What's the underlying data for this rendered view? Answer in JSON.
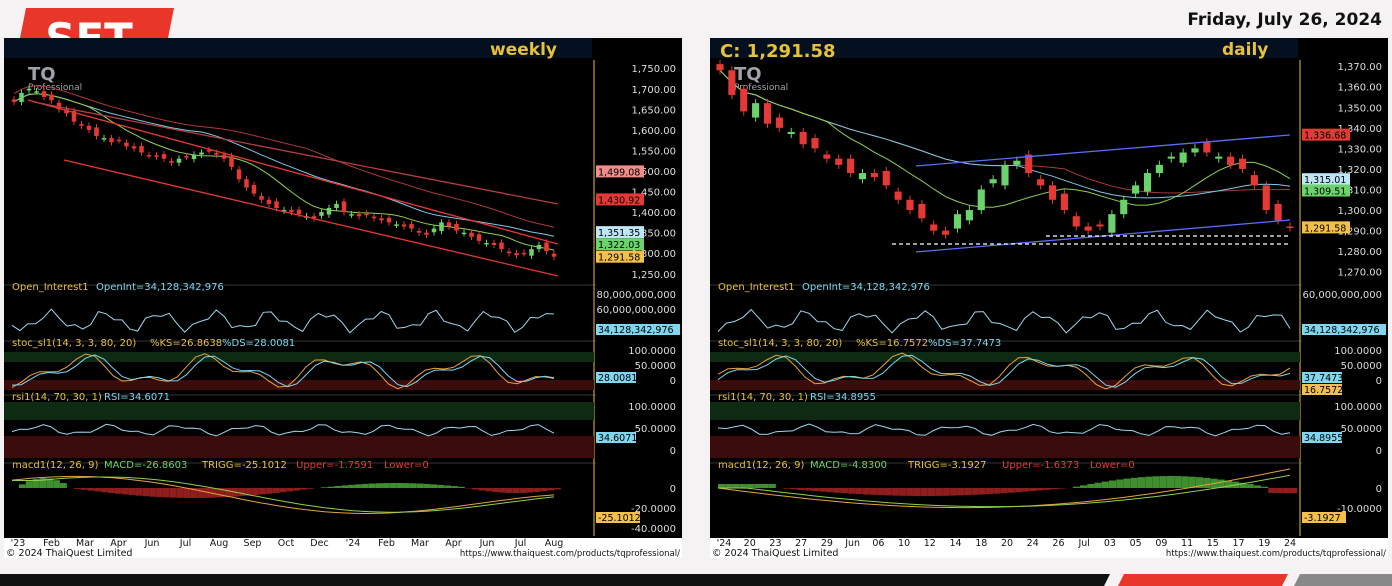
{
  "header": {
    "brand": "SET",
    "date": "Friday, July 26, 2024",
    "brand_color": "#e8372a"
  },
  "charts": [
    {
      "id": "weekly",
      "timeframe": "weekly",
      "logo": "TQ",
      "logo_sub": "Professional",
      "copyright": "© 2024  ThaiQuest Limited",
      "url": "https://www.thaiquest.com/products/tqprofessional/",
      "price_ticks": [
        "1,750.00",
        "1,700.00",
        "1,650.00",
        "1,600.00",
        "1,550.00",
        "1,500.00",
        "1,450.00",
        "1,400.00",
        "1,350.00",
        "1,300.00",
        "1,250.00"
      ],
      "price_range": [
        1230,
        1770
      ],
      "price_tags": [
        {
          "text": "1,499.08",
          "value": 1499.08,
          "color": "#f28b8b"
        },
        {
          "text": "1,430.92",
          "value": 1430.92,
          "color": "#e53935"
        },
        {
          "text": "1,351.35",
          "value": 1351.35,
          "color": "#bfe6f7"
        },
        {
          "text": "1,322.03",
          "value": 1322.03,
          "color": "#6bd36b"
        },
        {
          "text": "1,291.58",
          "value": 1291.58,
          "color": "#f5c04a"
        }
      ],
      "x_labels": [
        "'23",
        "Feb",
        "Mar",
        "Apr",
        "Jun",
        "Jul",
        "Aug",
        "Sep",
        "Oct",
        "Dec",
        "'24",
        "Feb",
        "Mar",
        "Apr",
        "Jun",
        "Jul",
        "Aug"
      ],
      "oi": {
        "label": "Open_Interest1",
        "value": "OpenInt=34,128,342,976",
        "ticks": [
          "80,000,000,000",
          "60,000,000,000"
        ],
        "tag": "34,128,342,976"
      },
      "stoch": {
        "label": "stoc_sl1(14, 3, 3, 80, 20)",
        "ks": "%KS=26.8638",
        "ds": "%DS=28.0081",
        "ticks": [
          "100.0000",
          "50.0000",
          "0"
        ],
        "tag": "28.0081"
      },
      "rsi": {
        "label": "rsi1(14, 70, 30, 1)",
        "value": "RSI=34.6071",
        "ticks": [
          "100.0000",
          "50.0000",
          "0"
        ],
        "tag": "34.6071"
      },
      "macd": {
        "label": "macd1(12, 26, 9)",
        "macd": "MACD=-26.8603",
        "trigg": "TRIGG=-25.1012",
        "upper": "Upper=-1.7591",
        "lower": "Lower=0",
        "ticks": [
          "0",
          "-20.0000",
          "-40.0000"
        ],
        "tag": "-25.1012"
      }
    },
    {
      "id": "daily",
      "timeframe": "daily",
      "close_label": "C: 1,291.58",
      "logo": "TQ",
      "logo_sub": "Professional",
      "copyright": "© 2024  ThaiQuest Limited",
      "url": "https://www.thaiquest.com/products/tqprofessional/",
      "price_ticks": [
        "1,370.00",
        "1,360.00",
        "1,350.00",
        "1,340.00",
        "1,330.00",
        "1,320.00",
        "1,310.00",
        "1,300.00",
        "1,290.00",
        "1,280.00",
        "1,270.00"
      ],
      "price_range": [
        1265,
        1373
      ],
      "price_tags": [
        {
          "text": "1,336.68",
          "value": 1336.68,
          "color": "#e53935"
        },
        {
          "text": "1,315.01",
          "value": 1315.01,
          "color": "#bfe6f7"
        },
        {
          "text": "1,309.51",
          "value": 1309.51,
          "color": "#6bd36b"
        },
        {
          "text": "1,291.58",
          "value": 1291.58,
          "color": "#f5c04a"
        }
      ],
      "x_labels": [
        "'24",
        "20",
        "23",
        "27",
        "29",
        "Jun",
        "06",
        "10",
        "12",
        "14",
        "18",
        "20",
        "24",
        "26",
        "Jul",
        "03",
        "05",
        "09",
        "11",
        "15",
        "17",
        "19",
        "24"
      ],
      "oi": {
        "label": "Open_Interest1",
        "value": "OpenInt=34,128,342,976",
        "ticks": [
          "60,000,000,000"
        ],
        "tag": "34,128,342,976"
      },
      "stoch": {
        "label": "stoc_sl1(14, 3, 3, 80, 20)",
        "ks": "%KS=16.7572",
        "ds": "%DS=37.7473",
        "ticks": [
          "100.0000",
          "50.0000",
          "0"
        ],
        "tag": "37.7473",
        "tag2": "16.7572"
      },
      "rsi": {
        "label": "rsi1(14, 70, 30, 1)",
        "value": "RSI=34.8955",
        "ticks": [
          "100.0000",
          "50.0000",
          "0"
        ],
        "tag": "34.8955"
      },
      "macd": {
        "label": "macd1(12, 26, 9)",
        "macd": "MACD=-4.8300",
        "trigg": "TRIGG=-3.1927",
        "upper": "Upper=-1.6373",
        "lower": "Lower=0",
        "ticks": [
          "0",
          "-10.0000"
        ],
        "tag": "-3.1927"
      }
    }
  ],
  "chart_data": [
    {
      "type": "candlestick",
      "title": "weekly",
      "series_close": [
        1668,
        1690,
        1700,
        1694,
        1680,
        1672,
        1650,
        1640,
        1620,
        1610,
        1600,
        1585,
        1580,
        1570,
        1575,
        1560,
        1555,
        1545,
        1538,
        1535,
        1530,
        1520,
        1530,
        1535,
        1540,
        1545,
        1550,
        1540,
        1530,
        1510,
        1480,
        1460,
        1445,
        1430,
        1420,
        1410,
        1405,
        1400,
        1395,
        1390,
        1385,
        1400,
        1410,
        1420,
        1400,
        1395,
        1390,
        1395,
        1385,
        1380,
        1375,
        1370,
        1365,
        1360,
        1350,
        1345,
        1360,
        1375,
        1365,
        1355,
        1350,
        1340,
        1330,
        1325,
        1320,
        1310,
        1300,
        1295,
        1300,
        1310,
        1320,
        1305,
        1291.58
      ],
      "indicators": {
        "rsi": 34.6071,
        "stoch_ks": 26.8638,
        "stoch_ds": 28.0081,
        "macd": -26.8603,
        "trigg": -25.1012
      }
    },
    {
      "type": "candlestick",
      "title": "daily",
      "series_close": [
        1368,
        1356,
        1348,
        1352,
        1342,
        1340,
        1338,
        1332,
        1330,
        1325,
        1322,
        1318,
        1318,
        1316,
        1312,
        1305,
        1300,
        1296,
        1290,
        1288,
        1298,
        1300,
        1310,
        1315,
        1322,
        1324,
        1318,
        1312,
        1305,
        1300,
        1292,
        1290,
        1292,
        1298,
        1305,
        1312,
        1318,
        1322,
        1326,
        1328,
        1330,
        1328,
        1326,
        1322,
        1320,
        1312,
        1300,
        1295,
        1291.58
      ],
      "indicators": {
        "rsi": 34.8955,
        "stoch_ks": 16.7572,
        "stoch_ds": 37.7473,
        "macd": -4.83,
        "trigg": -3.1927
      }
    }
  ]
}
